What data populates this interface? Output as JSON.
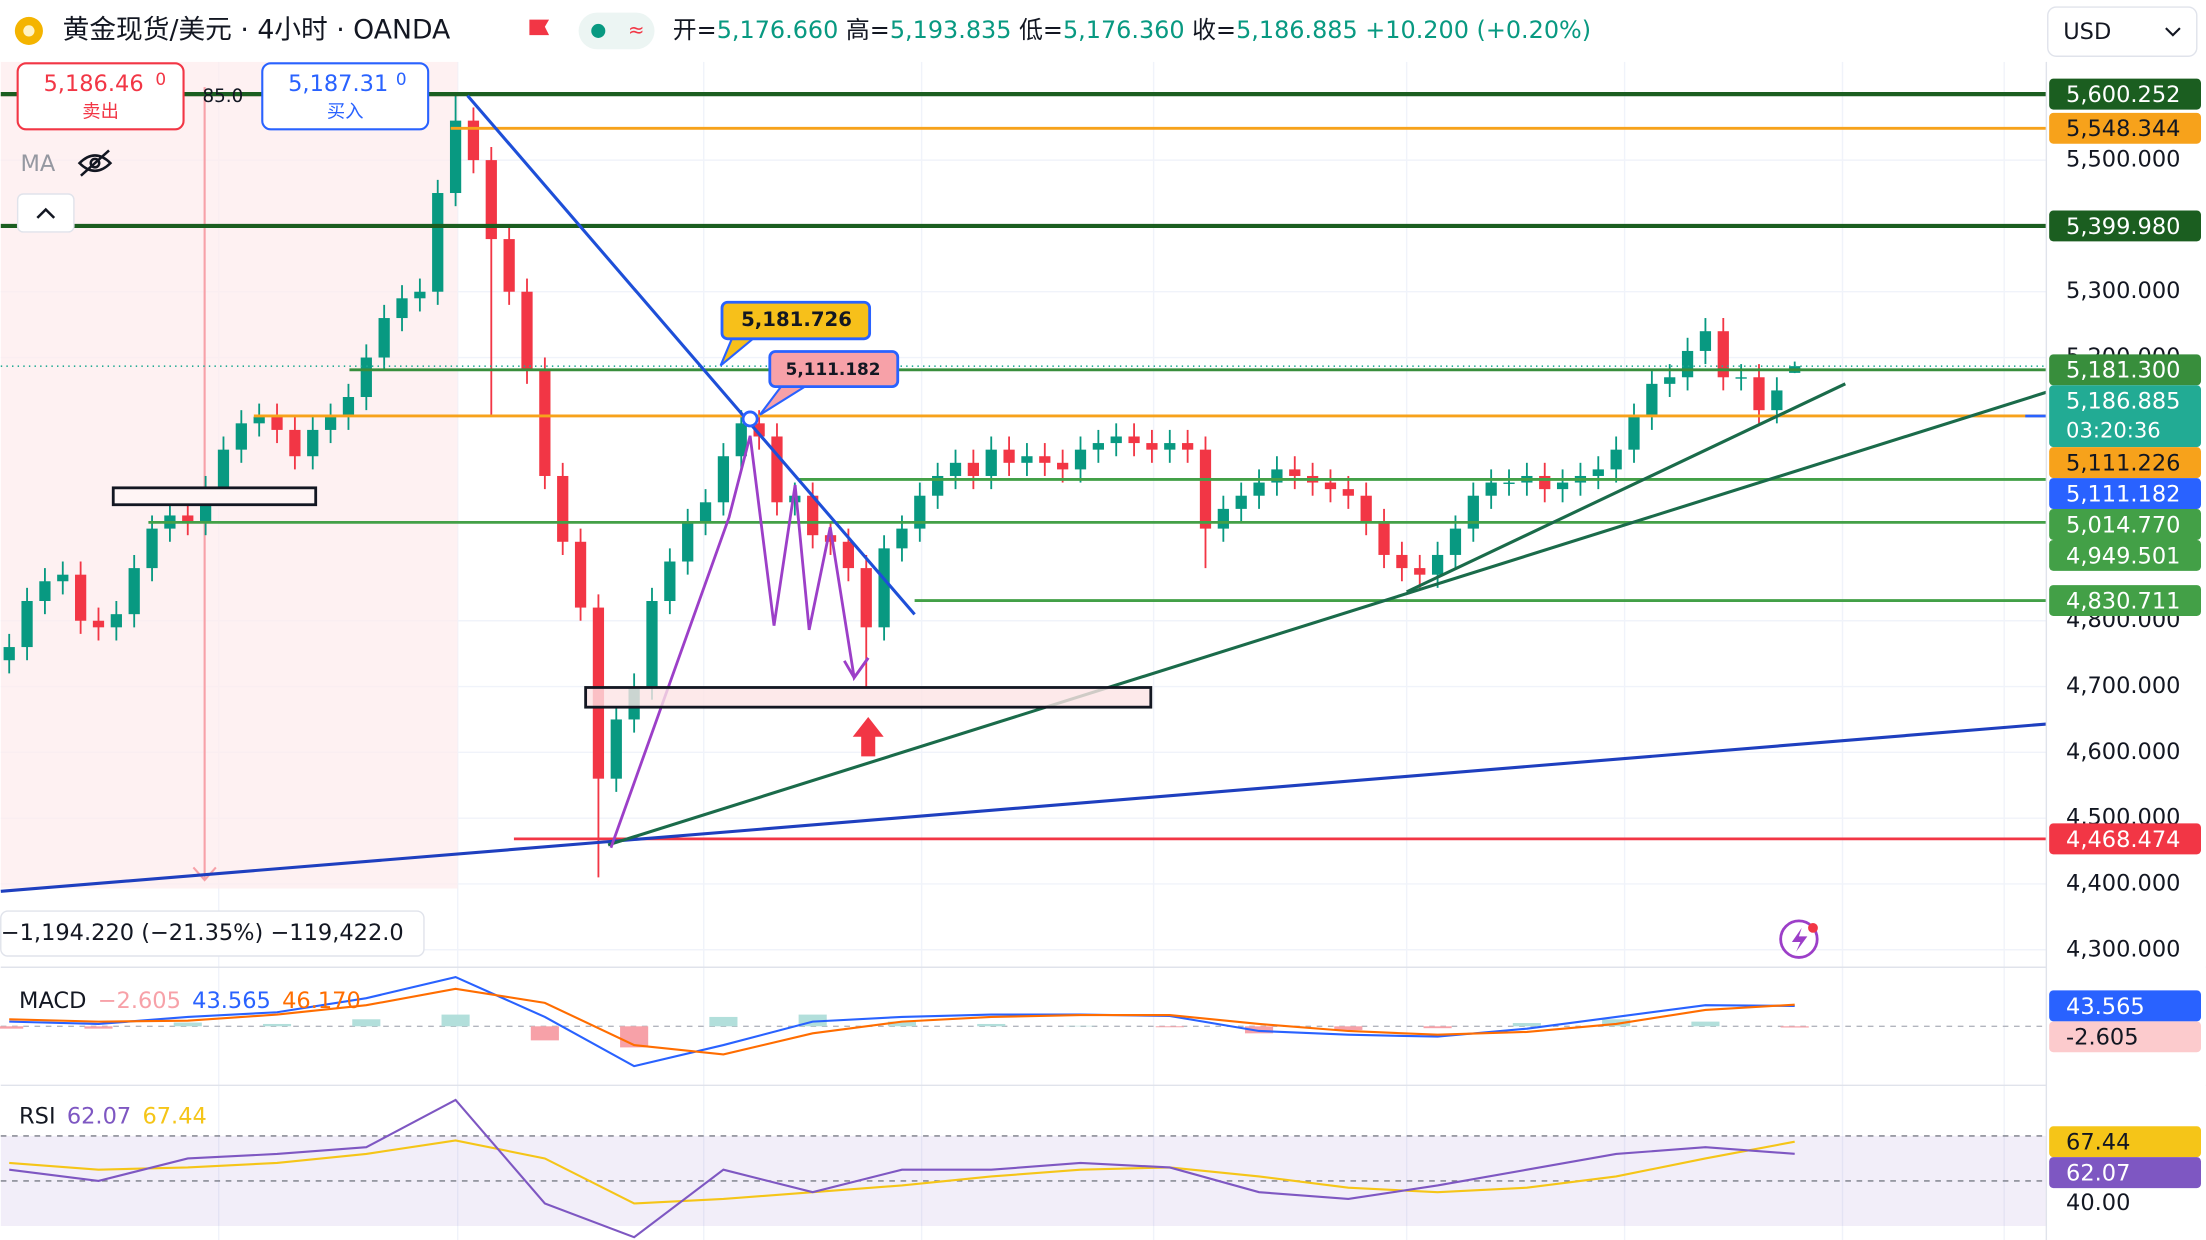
{
  "header": {
    "symbol": "黄金现货/美元 · 4小时 · OANDA",
    "ohlc": [
      {
        "label": "开=",
        "value": "5,176.660"
      },
      {
        "label": "高=",
        "value": "5,193.835"
      },
      {
        "label": "低=",
        "value": "5,176.360"
      },
      {
        "label": "收=",
        "value": "5,186.885"
      }
    ],
    "change": "+10.200 (+0.20%)",
    "currency": "USD"
  },
  "trade": {
    "sell_price": "5,186.46",
    "sell_price_small": "0",
    "sell_label": "卖出",
    "spread": "85.0",
    "buy_price": "5,187.31",
    "buy_price_small": "0",
    "buy_label": "买入"
  },
  "indicators": {
    "ma": "MA"
  },
  "measure": "−1,194.220 (−21.35%) −119,422.0",
  "callouts": [
    "5,181.726",
    "5,111.182"
  ],
  "chart_data": [
    {
      "type": "candlestick",
      "up_color": "#089981",
      "down_color": "#f23645",
      "open": [
        4740,
        4760,
        4830,
        4860,
        4870,
        4800,
        4790,
        4810,
        4880,
        4940,
        4960,
        4950,
        5000,
        5060,
        5100,
        5110,
        5090,
        5050,
        5090,
        5110,
        5140,
        5200,
        5260,
        5290,
        5300,
        5450,
        5560,
        5500,
        5380,
        5300,
        5180,
        5020,
        4920,
        4820,
        4560,
        4650,
        4700,
        4830,
        4890,
        4950,
        4980,
        5050,
        5100,
        5080,
        4980,
        4990,
        4930,
        4920,
        4880,
        4790,
        4910,
        4940,
        4990,
        5020,
        5040,
        5020,
        5060,
        5040,
        5050,
        5040,
        5030,
        5060,
        5070,
        5080,
        5070,
        5060,
        5070,
        5060,
        4940,
        4970,
        4990,
        5010,
        5030,
        5020,
        5010,
        5000,
        4990,
        4950,
        4900,
        4880,
        4870,
        4900,
        4940,
        4990,
        5010,
        5010,
        5020,
        5000,
        5010,
        5020,
        5030,
        5060,
        5110,
        5160,
        5170,
        5210,
        5240,
        5170,
        5170,
        5120,
        5176.66
      ],
      "high": [
        4780,
        4850,
        4880,
        4890,
        4890,
        4820,
        4830,
        4900,
        4960,
        4980,
        4980,
        5020,
        5080,
        5120,
        5130,
        5130,
        5110,
        5110,
        5130,
        5160,
        5220,
        5280,
        5310,
        5320,
        5470,
        5600,
        5580,
        5520,
        5400,
        5320,
        5200,
        5040,
        4940,
        4840,
        4670,
        4720,
        4850,
        4910,
        4970,
        5000,
        5070,
        5120,
        5120,
        5100,
        5010,
        5010,
        4950,
        4940,
        4900,
        4930,
        4960,
        5010,
        5040,
        5060,
        5060,
        5080,
        5080,
        5070,
        5070,
        5060,
        5080,
        5090,
        5100,
        5100,
        5090,
        5090,
        5090,
        5080,
        4990,
        5010,
        5030,
        5050,
        5050,
        5040,
        5030,
        5020,
        5010,
        4970,
        4920,
        4900,
        4920,
        4960,
        5010,
        5030,
        5030,
        5040,
        5040,
        5030,
        5040,
        5050,
        5080,
        5130,
        5180,
        5190,
        5230,
        5260,
        5260,
        5190,
        5190,
        5170,
        5193.835
      ],
      "low": [
        4720,
        4740,
        4810,
        4840,
        4780,
        4770,
        4770,
        4790,
        4860,
        4920,
        4930,
        4930,
        4980,
        5040,
        5080,
        5070,
        5030,
        5030,
        5070,
        5090,
        5120,
        5180,
        5240,
        5270,
        5280,
        5430,
        5480,
        5110,
        5280,
        5160,
        5000,
        4900,
        4800,
        4410,
        4540,
        4630,
        4680,
        4810,
        4870,
        4930,
        4960,
        5030,
        5060,
        4960,
        4960,
        4910,
        4900,
        4860,
        4700,
        4770,
        4890,
        4920,
        4970,
        5000,
        5000,
        5000,
        5020,
        5020,
        5020,
        5010,
        5010,
        5040,
        5050,
        5050,
        5040,
        5040,
        5040,
        4880,
        4920,
        4950,
        4970,
        4990,
        5000,
        4990,
        4980,
        4970,
        4930,
        4880,
        4860,
        4850,
        4850,
        4880,
        4920,
        4970,
        4990,
        4990,
        4980,
        4980,
        4990,
        5000,
        5010,
        5040,
        5090,
        5140,
        5150,
        5190,
        5150,
        5150,
        5100,
        5100,
        5176.36
      ],
      "close": [
        4760,
        4830,
        4860,
        4870,
        4800,
        4790,
        4810,
        4880,
        4940,
        4960,
        4950,
        5000,
        5060,
        5100,
        5110,
        5090,
        5050,
        5090,
        5110,
        5140,
        5200,
        5260,
        5290,
        5300,
        5450,
        5560,
        5500,
        5380,
        5300,
        5180,
        5020,
        4920,
        4820,
        4560,
        4650,
        4700,
        4830,
        4890,
        4950,
        4980,
        5050,
        5100,
        5080,
        4980,
        4990,
        4930,
        4920,
        4880,
        4790,
        4910,
        4940,
        4990,
        5020,
        5040,
        5020,
        5060,
        5040,
        5050,
        5040,
        5030,
        5060,
        5070,
        5080,
        5070,
        5060,
        5070,
        5060,
        4940,
        4970,
        4990,
        5010,
        5030,
        5020,
        5010,
        5000,
        4990,
        4950,
        4900,
        4880,
        4870,
        4900,
        4940,
        4990,
        5010,
        5010,
        5020,
        5000,
        5010,
        5020,
        5030,
        5060,
        5110,
        5160,
        5170,
        5210,
        5240,
        5170,
        5170,
        5120,
        5150,
        5186.885
      ],
      "ylim": [
        4270,
        5660
      ],
      "yticks": [
        {
          "value": 4300,
          "label": "4,300.000"
        },
        {
          "value": 4400,
          "label": "4,400.000"
        },
        {
          "value": 4500,
          "label": "4,500.000"
        },
        {
          "value": 4600,
          "label": "4,600.000"
        },
        {
          "value": 4700,
          "label": "4,700.000"
        },
        {
          "value": 4800,
          "label": "4,800.000"
        },
        {
          "value": 5200,
          "label": "5,200.000"
        },
        {
          "value": 5300,
          "label": "5,300.000"
        },
        {
          "value": 5500,
          "label": "5,500.000"
        }
      ],
      "levels": [
        {
          "value": 5600.252,
          "label": "5,600.252",
          "color": "#1b5e20",
          "text_color": "#ffffff"
        },
        {
          "value": 5548.344,
          "label": "5,548.344",
          "color": "#f7a21b",
          "text_color": "#131722"
        },
        {
          "value": 5399.98,
          "label": "5,399.980",
          "color": "#1b5e20",
          "text_color": "#ffffff"
        },
        {
          "value": 5181.3,
          "label": "5,181.300",
          "color": "#388e3c",
          "text_color": "#ffffff"
        },
        {
          "value": 5111.226,
          "label": "5,111.226",
          "color": "#f7a21b",
          "text_color": "#131722"
        },
        {
          "value": 5111.182,
          "label": "5,111.182",
          "color": "#2962ff",
          "text_color": "#ffffff"
        },
        {
          "value": 5014.77,
          "label": "5,014.770",
          "color": "#43a047",
          "text_color": "#ffffff"
        },
        {
          "value": 4949.501,
          "label": "4,949.501",
          "color": "#43a047",
          "text_color": "#ffffff"
        },
        {
          "value": 4830.711,
          "label": "4,830.711",
          "color": "#43a047",
          "text_color": "#ffffff"
        },
        {
          "value": 4468.474,
          "label": "4,468.474",
          "color": "#f23645",
          "text_color": "#ffffff"
        }
      ],
      "last_price": {
        "value": 5186.885,
        "label": "5,186.885",
        "countdown": "03:20:36",
        "color": "#22ab94"
      }
    },
    {
      "type": "macd",
      "title": "MACD",
      "ylim": [
        -120,
        120
      ],
      "macd": {
        "color": "#2962ff",
        "values": [
          10,
          5,
          20,
          30,
          60,
          105,
          20,
          -85,
          -40,
          10,
          20,
          25,
          25,
          22,
          -10,
          -18,
          -22,
          -5,
          20,
          45,
          43.565
        ]
      },
      "signal": {
        "color": "#ff6d00",
        "values": [
          15,
          10,
          12,
          25,
          45,
          80,
          50,
          -40,
          -60,
          -15,
          10,
          20,
          24,
          24,
          5,
          -10,
          -18,
          -12,
          5,
          35,
          46.17
        ]
      },
      "histogram": {
        "pos_color": "#b2dfdb",
        "neg_color": "#f7a1a8",
        "values": [
          -5,
          -5,
          8,
          5,
          15,
          25,
          -30,
          -45,
          20,
          25,
          10,
          5,
          1,
          -2,
          -15,
          -8,
          -4,
          7,
          15,
          10,
          -2.605
        ]
      },
      "readout": {
        "histogram": "−2.605",
        "macd": "43.565",
        "signal": "46.170"
      },
      "axis_labels": [
        {
          "value": 43.565,
          "label": "43.565",
          "color": "#2962ff",
          "text_color": "#ffffff"
        },
        {
          "value": -2.605,
          "label": "-2.605",
          "color": "#fccbcd",
          "text_color": "#131722"
        }
      ]
    },
    {
      "type": "rsi",
      "title": "RSI",
      "ylim": [
        23.75,
        92.5
      ],
      "rsi": {
        "color": "#7e57c2",
        "values": [
          55,
          50,
          60,
          62,
          65,
          86,
          40,
          25,
          55,
          45,
          55,
          55,
          58,
          56,
          45,
          42,
          48,
          55,
          62,
          65,
          62.07
        ]
      },
      "ma": {
        "color": "#f5c518",
        "values": [
          58,
          55,
          56,
          58,
          62,
          68,
          60,
          40,
          42,
          45,
          48,
          52,
          55,
          56,
          52,
          47,
          45,
          47,
          52,
          60,
          67.44
        ]
      },
      "readout": {
        "rsi": "62.07",
        "ma": "67.44"
      },
      "levels": [
        70,
        50
      ],
      "band": [
        70,
        30
      ],
      "yticks": [
        {
          "value": 40,
          "label": "40.00"
        }
      ],
      "axis_labels": [
        {
          "value": 67.44,
          "label": "67.44",
          "color": "#f5c518",
          "text_color": "#131722"
        },
        {
          "value": 62.07,
          "label": "62.07",
          "color": "#7e57c2",
          "text_color": "#ffffff"
        }
      ]
    }
  ]
}
